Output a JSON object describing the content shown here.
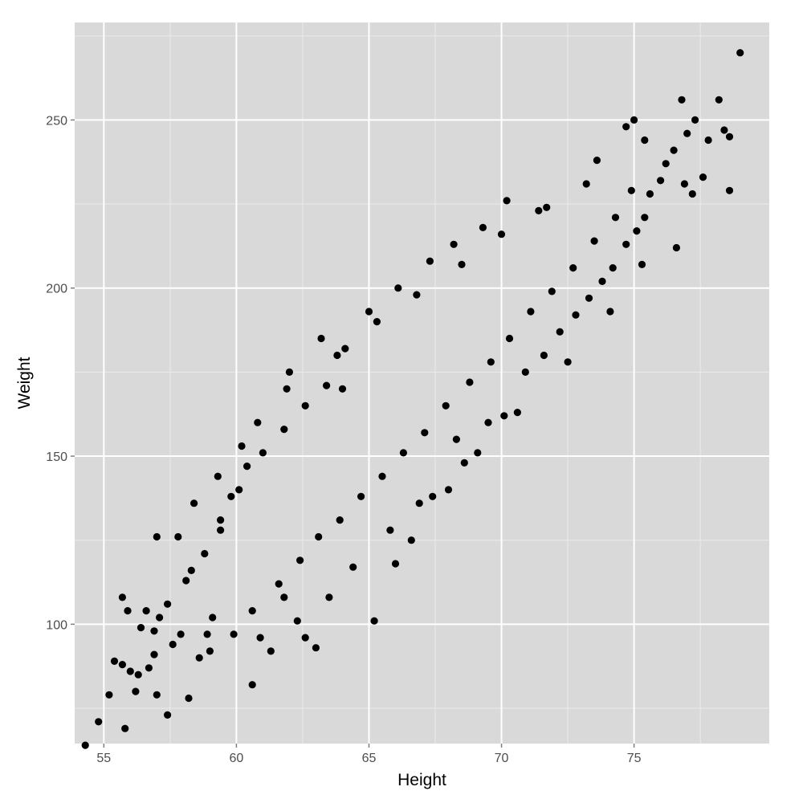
{
  "chart_data": {
    "type": "scatter",
    "xlabel": "Height",
    "ylabel": "Weight",
    "xlim": [
      53.9,
      80.1
    ],
    "ylim": [
      64.5,
      279
    ],
    "x_ticks": [
      55,
      60,
      65,
      70,
      75
    ],
    "y_ticks": [
      100,
      150,
      200,
      250
    ],
    "x_tick_labels": [
      "55",
      "60",
      "65",
      "70",
      "75"
    ],
    "y_tick_labels": [
      "100",
      "150",
      "200",
      "250"
    ],
    "grid": true,
    "legend": "none",
    "colors": {
      "panel": "#d9d9d9",
      "grid_major": "#ffffff",
      "grid_minor": "#ebebeb",
      "point": "#000000"
    },
    "series": [
      {
        "points": [
          [
            54.3,
            64
          ],
          [
            54.8,
            71
          ],
          [
            55.2,
            79
          ],
          [
            55.4,
            89
          ],
          [
            55.7,
            88
          ],
          [
            55.8,
            69
          ],
          [
            56.0,
            86
          ],
          [
            56.2,
            80
          ],
          [
            56.3,
            85
          ],
          [
            56.7,
            87
          ],
          [
            56.9,
            91
          ],
          [
            57.0,
            79
          ],
          [
            57.4,
            73
          ],
          [
            57.6,
            94
          ],
          [
            57.9,
            97
          ],
          [
            58.2,
            78
          ],
          [
            58.6,
            90
          ],
          [
            58.9,
            97
          ],
          [
            55.7,
            108
          ],
          [
            55.9,
            104
          ],
          [
            56.4,
            99
          ],
          [
            56.6,
            104
          ],
          [
            57.1,
            102
          ],
          [
            57.8,
            126
          ],
          [
            58.3,
            116
          ],
          [
            59.1,
            102
          ],
          [
            59.4,
            131
          ],
          [
            59.8,
            138
          ],
          [
            60.2,
            153
          ],
          [
            60.4,
            147
          ],
          [
            60.6,
            82
          ],
          [
            60.9,
            96
          ],
          [
            61.3,
            92
          ],
          [
            61.8,
            108
          ],
          [
            62.0,
            175
          ],
          [
            62.6,
            96
          ],
          [
            63.0,
            93
          ],
          [
            63.2,
            185
          ],
          [
            64.0,
            170
          ],
          [
            65.2,
            101
          ],
          [
            66.0,
            118
          ],
          [
            66.6,
            125
          ],
          [
            67.4,
            138
          ],
          [
            68.0,
            140
          ],
          [
            68.3,
            155
          ],
          [
            69.1,
            151
          ],
          [
            69.5,
            160
          ],
          [
            70.1,
            162
          ],
          [
            70.9,
            175
          ],
          [
            71.6,
            180
          ],
          [
            72.2,
            187
          ],
          [
            72.8,
            192
          ],
          [
            73.3,
            197
          ],
          [
            73.8,
            202
          ],
          [
            74.2,
            206
          ],
          [
            74.7,
            213
          ],
          [
            75.1,
            217
          ],
          [
            75.4,
            221
          ],
          [
            75.6,
            228
          ],
          [
            76.0,
            232
          ],
          [
            76.2,
            237
          ],
          [
            76.5,
            241
          ],
          [
            76.6,
            212
          ],
          [
            76.9,
            231
          ],
          [
            77.0,
            246
          ],
          [
            77.2,
            228
          ],
          [
            77.6,
            233
          ],
          [
            76.8,
            256
          ],
          [
            77.3,
            250
          ],
          [
            77.8,
            244
          ],
          [
            78.2,
            256
          ],
          [
            78.4,
            247
          ],
          [
            78.6,
            245
          ],
          [
            78.6,
            229
          ],
          [
            79.0,
            270
          ],
          [
            75.0,
            250
          ],
          [
            74.7,
            248
          ],
          [
            75.4,
            244
          ],
          [
            73.6,
            238
          ],
          [
            71.4,
            223
          ],
          [
            70.2,
            226
          ],
          [
            69.3,
            218
          ],
          [
            68.2,
            213
          ],
          [
            67.3,
            208
          ],
          [
            66.1,
            200
          ],
          [
            65.0,
            193
          ],
          [
            64.1,
            182
          ],
          [
            63.4,
            171
          ],
          [
            62.6,
            165
          ],
          [
            61.8,
            158
          ],
          [
            61.0,
            151
          ],
          [
            60.1,
            140
          ],
          [
            59.4,
            128
          ],
          [
            58.8,
            121
          ],
          [
            58.1,
            113
          ],
          [
            57.4,
            106
          ],
          [
            56.9,
            98
          ],
          [
            59.0,
            92
          ],
          [
            59.9,
            97
          ],
          [
            60.6,
            104
          ],
          [
            61.6,
            112
          ],
          [
            62.4,
            119
          ],
          [
            63.1,
            126
          ],
          [
            63.9,
            131
          ],
          [
            64.7,
            138
          ],
          [
            65.5,
            144
          ],
          [
            66.3,
            151
          ],
          [
            67.1,
            157
          ],
          [
            67.9,
            165
          ],
          [
            68.8,
            172
          ],
          [
            69.6,
            178
          ],
          [
            70.3,
            185
          ],
          [
            71.1,
            193
          ],
          [
            71.9,
            199
          ],
          [
            72.7,
            206
          ],
          [
            73.5,
            214
          ],
          [
            74.3,
            221
          ],
          [
            74.9,
            229
          ],
          [
            62.3,
            101
          ],
          [
            63.5,
            108
          ],
          [
            64.4,
            117
          ],
          [
            65.8,
            128
          ],
          [
            66.9,
            136
          ],
          [
            68.6,
            148
          ],
          [
            70.6,
            163
          ],
          [
            72.5,
            178
          ],
          [
            74.1,
            193
          ],
          [
            75.3,
            207
          ],
          [
            57.0,
            126
          ],
          [
            58.4,
            136
          ],
          [
            59.3,
            144
          ],
          [
            60.8,
            160
          ],
          [
            61.9,
            170
          ],
          [
            63.8,
            180
          ],
          [
            65.3,
            190
          ],
          [
            66.8,
            198
          ],
          [
            68.5,
            207
          ],
          [
            70.0,
            216
          ],
          [
            71.7,
            224
          ],
          [
            73.2,
            231
          ]
        ]
      }
    ]
  }
}
